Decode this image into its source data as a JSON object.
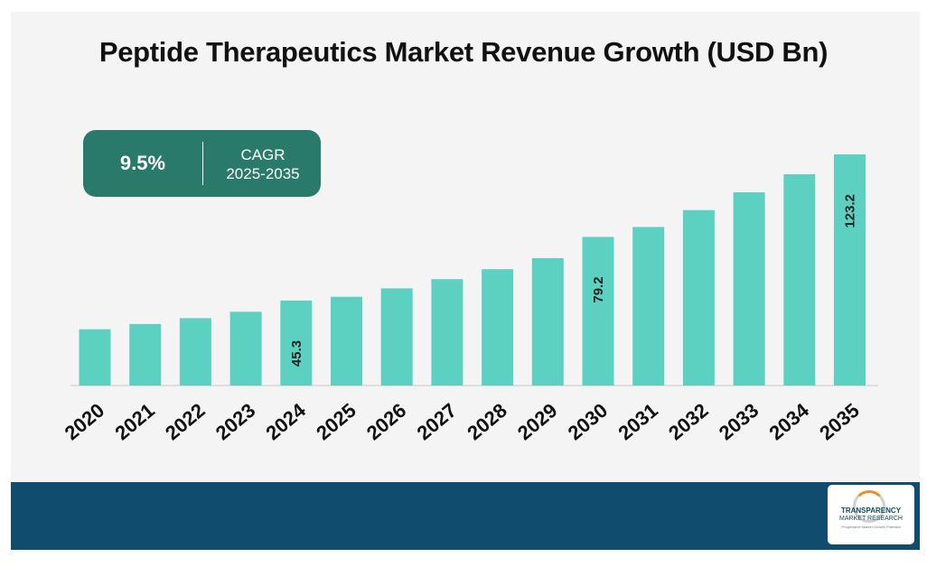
{
  "title": "Peptide Therapeutics Market Revenue Growth (USD Bn)",
  "cagr": {
    "value": "9.5%",
    "label": "CAGR",
    "period": "2025-2035"
  },
  "logo": {
    "line1": "TRANSPARENCY",
    "line2": "MARKET RESEARCH",
    "line3": "Progressive Market Growth Potential"
  },
  "colors": {
    "bar": "#5dd1c1",
    "cagr_box": "#2a7a6b",
    "footer": "#0f4c6e",
    "background": "#f4f4f4"
  },
  "chart_data": {
    "type": "bar",
    "title": "Peptide Therapeutics Market Revenue Growth (USD Bn)",
    "xlabel": "",
    "ylabel": "",
    "categories": [
      "2020",
      "2021",
      "2022",
      "2023",
      "2024",
      "2025",
      "2026",
      "2027",
      "2028",
      "2029",
      "2030",
      "2031",
      "2032",
      "2033",
      "2034",
      "2035"
    ],
    "values": [
      30.0,
      32.8,
      35.9,
      39.3,
      45.3,
      47.3,
      51.8,
      56.7,
      62.0,
      67.9,
      79.2,
      84.5,
      93.5,
      103.0,
      112.6,
      123.2
    ],
    "data_labels": {
      "2024": "45.3",
      "2030": "79.2",
      "2035": "123.2"
    },
    "ylim": [
      0,
      123.2
    ],
    "grid": false,
    "legend": "none"
  }
}
